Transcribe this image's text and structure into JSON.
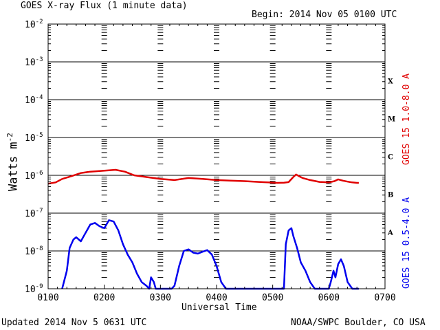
{
  "header": {
    "title": "GOES X-ray Flux (1 minute data)",
    "begin": "Begin: 2014 Nov 05 0100 UTC"
  },
  "footer": {
    "updated": "Updated 2014 Nov  5 0631 UTC",
    "source": "NOAA/SWPC Boulder, CO USA"
  },
  "chart_data": {
    "type": "line",
    "title": "GOES X-ray Flux (1 minute data)",
    "xlabel": "Universal Time",
    "ylabel": "Watts m",
    "ylabel_sup": "-2",
    "yscale": "log",
    "ylim": [
      1e-09,
      0.01
    ],
    "xlim": [
      "0100",
      "0700"
    ],
    "x_ticks": [
      "0100",
      "0200",
      "0300",
      "0400",
      "0500",
      "0600",
      "0700"
    ],
    "y_ticks": [
      {
        "base": "10",
        "exp": "-9"
      },
      {
        "base": "10",
        "exp": "-8"
      },
      {
        "base": "10",
        "exp": "-7"
      },
      {
        "base": "10",
        "exp": "-6"
      },
      {
        "base": "10",
        "exp": "-5"
      },
      {
        "base": "10",
        "exp": "-4"
      },
      {
        "base": "10",
        "exp": "-3"
      },
      {
        "base": "10",
        "exp": "-2"
      }
    ],
    "flare_classes": [
      {
        "label": "A",
        "value": 1e-08
      },
      {
        "label": "B",
        "value": 1e-07
      },
      {
        "label": "C",
        "value": 1e-06
      },
      {
        "label": "M",
        "value": 1e-05
      },
      {
        "label": "X",
        "value": 0.0001
      }
    ],
    "grid": true,
    "series": [
      {
        "name": "GOES 15 1.0-8.0 A",
        "color": "#e00000",
        "x": [
          "0100",
          "0108",
          "0115",
          "0125",
          "0135",
          "0145",
          "0155",
          "0205",
          "0212",
          "0222",
          "0232",
          "0245",
          "0300",
          "0315",
          "0330",
          "0345",
          "0400",
          "0415",
          "0430",
          "0445",
          "0455",
          "0505",
          "0512",
          "0517",
          "0522",
          "0525",
          "0528",
          "0532",
          "0540",
          "0550",
          "0600",
          "0606",
          "0610",
          "0615",
          "0620",
          "0625",
          "0630",
          "0632"
        ],
        "values": [
          6e-07,
          6.5e-07,
          8e-07,
          9.5e-07,
          1.15e-06,
          1.25e-06,
          1.3e-06,
          1.35e-06,
          1.4e-06,
          1.25e-06,
          1e-06,
          9e-07,
          8e-07,
          7.5e-07,
          8.5e-07,
          8e-07,
          7.5e-07,
          7.2e-07,
          7e-07,
          6.7e-07,
          6.5e-07,
          6.3e-07,
          6.4e-07,
          6.6e-07,
          9e-07,
          1.05e-06,
          9.5e-07,
          8.5e-07,
          7.5e-07,
          6.7e-07,
          6.5e-07,
          7e-07,
          7.8e-07,
          7.2e-07,
          6.8e-07,
          6.5e-07,
          6.3e-07,
          6.3e-07
        ]
      },
      {
        "name": "GOES 15 0.5-4.0 A",
        "color": "#0000ee",
        "x": [
          "0115",
          "0120",
          "0123",
          "0127",
          "0130",
          "0135",
          "0140",
          "0145",
          "0150",
          "0155",
          "0200",
          "0205",
          "0210",
          "0215",
          "0220",
          "0225",
          "0230",
          "0235",
          "0240",
          "0245",
          "0248",
          "0250",
          "0253",
          "0255",
          "0258",
          "0300",
          "0305",
          "0308",
          "0312",
          "0315",
          "0320",
          "0325",
          "0330",
          "0335",
          "0340",
          "0345",
          "0350",
          "0355",
          "0400",
          "0405",
          "0410",
          "0420",
          "0430",
          "0500",
          "0505",
          "0510",
          "0512",
          "0514",
          "0517",
          "0520",
          "0522",
          "0526",
          "0530",
          "0535",
          "0540",
          "0545",
          "0550",
          "0555",
          "0600",
          "0602",
          "0605",
          "0607",
          "0610",
          "0613",
          "0616",
          "0620",
          "0625",
          "0632"
        ],
        "values": [
          1e-09,
          3e-09,
          1.2e-08,
          2e-08,
          2.3e-08,
          1.8e-08,
          3e-08,
          5e-08,
          5.5e-08,
          4.5e-08,
          4e-08,
          6.5e-08,
          6e-08,
          3.5e-08,
          1.5e-08,
          8e-09,
          5e-09,
          2.5e-09,
          1.5e-09,
          1.2e-09,
          1e-09,
          2e-09,
          1.5e-09,
          1e-09,
          1e-09,
          1e-09,
          1e-09,
          1e-09,
          1e-09,
          1.2e-09,
          4e-09,
          1e-08,
          1.1e-08,
          9e-09,
          8.5e-09,
          9.5e-09,
          1.05e-08,
          8e-09,
          4e-09,
          1.5e-09,
          1e-09,
          1e-09,
          1e-09,
          1e-09,
          1e-09,
          1e-09,
          1e-09,
          1.5e-08,
          3.5e-08,
          4e-08,
          2.5e-08,
          1.2e-08,
          5e-09,
          3e-09,
          1.5e-09,
          1e-09,
          1e-09,
          1e-09,
          1e-09,
          1.5e-09,
          3e-09,
          2e-09,
          4.5e-09,
          6e-09,
          4e-09,
          1.5e-09,
          1e-09,
          1e-09
        ]
      }
    ]
  }
}
